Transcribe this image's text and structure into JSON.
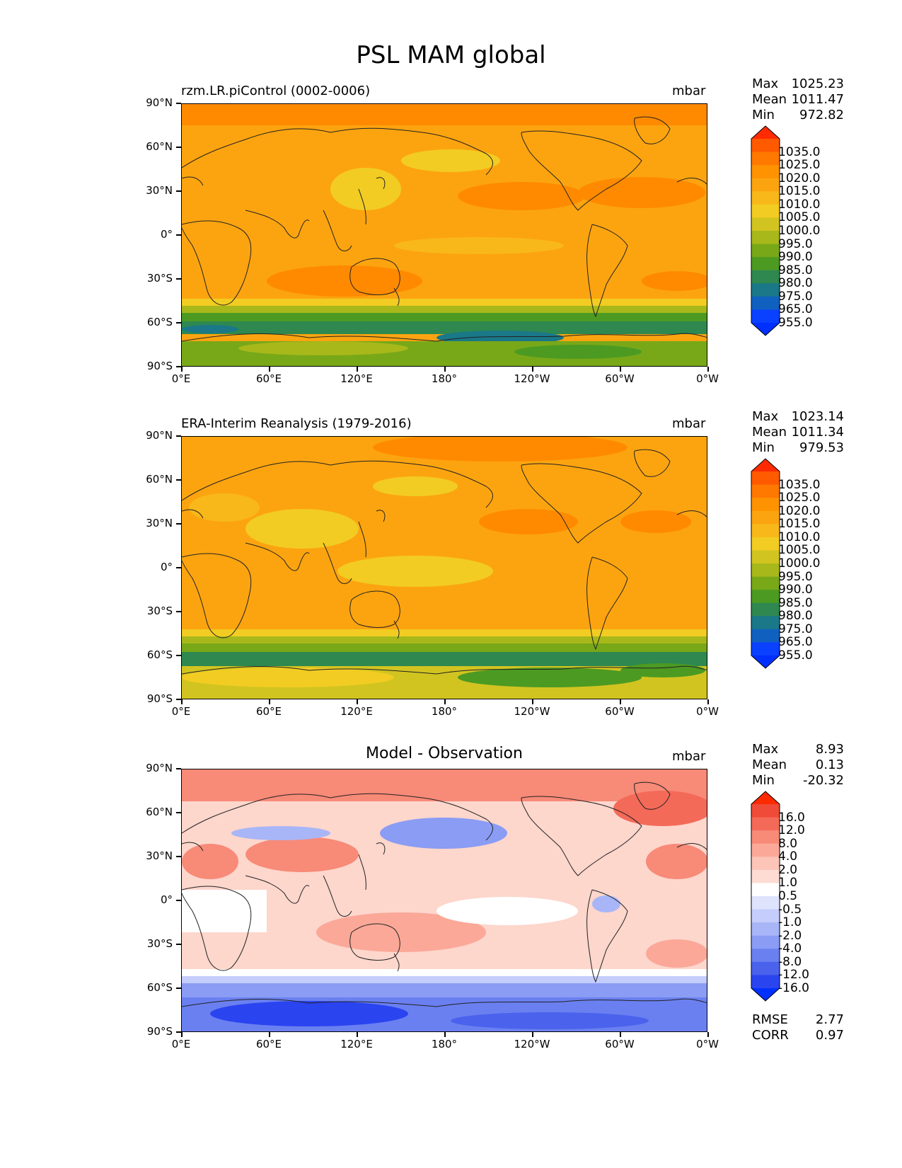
{
  "figure_title": "PSL MAM global",
  "panels": [
    {
      "title": "rzm.LR.piControl (0002-0006)",
      "units": "mbar",
      "stats": [
        {
          "label": "Max",
          "value": "1025.23"
        },
        {
          "label": "Mean",
          "value": "1011.47"
        },
        {
          "label": "Min",
          "value": "972.82"
        }
      ],
      "colorbar": {
        "labels": [
          "1035.0",
          "1025.0",
          "1020.0",
          "1015.0",
          "1010.0",
          "1005.0",
          "1000.0",
          "995.0",
          "990.0",
          "985.0",
          "980.0",
          "975.0",
          "965.0",
          "955.0"
        ],
        "colors": [
          "#ff2a00",
          "#ff5a00",
          "#ff7800",
          "#ff9200",
          "#fca410",
          "#f9b81a",
          "#f2cc22",
          "#d2c420",
          "#a8b81a",
          "#78a818",
          "#4c9a22",
          "#2e8850",
          "#1a7888",
          "#1060c0",
          "#0a40ff",
          "#0030ff"
        ]
      }
    },
    {
      "title": "ERA-Interim Reanalysis (1979-2016)",
      "units": "mbar",
      "stats": [
        {
          "label": "Max",
          "value": "1023.14"
        },
        {
          "label": "Mean",
          "value": "1011.34"
        },
        {
          "label": "Min",
          "value": "979.53"
        }
      ],
      "colorbar": {
        "labels": [
          "1035.0",
          "1025.0",
          "1020.0",
          "1015.0",
          "1010.0",
          "1005.0",
          "1000.0",
          "995.0",
          "990.0",
          "985.0",
          "980.0",
          "975.0",
          "965.0",
          "955.0"
        ],
        "colors": [
          "#ff2a00",
          "#ff5a00",
          "#ff7800",
          "#ff9200",
          "#fca410",
          "#f9b81a",
          "#f2cc22",
          "#d2c420",
          "#a8b81a",
          "#78a818",
          "#4c9a22",
          "#2e8850",
          "#1a7888",
          "#1060c0",
          "#0a40ff",
          "#0030ff"
        ]
      }
    },
    {
      "title": "Model - Observation",
      "units": "mbar",
      "stats": [
        {
          "label": "Max",
          "value": "8.93"
        },
        {
          "label": "Mean",
          "value": "0.13"
        },
        {
          "label": "Min",
          "value": "-20.32"
        }
      ],
      "colorbar": {
        "labels": [
          "16.0",
          "12.0",
          "8.0",
          "4.0",
          "2.0",
          "1.0",
          "0.5",
          "-0.5",
          "-1.0",
          "-2.0",
          "-4.0",
          "-8.0",
          "-12.0",
          "-16.0"
        ],
        "colors": [
          "#ff2a00",
          "#f04a38",
          "#f46a58",
          "#f88a78",
          "#fba898",
          "#fdc4b8",
          "#fedcd4",
          "#ffffff",
          "#dfe4fd",
          "#c4cdfb",
          "#a8b6f8",
          "#8a9cf4",
          "#6a80f0",
          "#4a62ec",
          "#2a44f0",
          "#0030ff"
        ]
      },
      "extra_stats": [
        {
          "label": "RMSE",
          "value": "2.77"
        },
        {
          "label": "CORR",
          "value": "0.97"
        }
      ]
    }
  ],
  "axes": {
    "lat_ticks": [
      "90°N",
      "60°N",
      "30°N",
      "0°",
      "30°S",
      "60°S",
      "90°S"
    ],
    "lon_ticks": [
      "0°E",
      "60°E",
      "120°E",
      "180°",
      "120°W",
      "60°W",
      "0°W"
    ]
  },
  "colors": {
    "map_model_base": "#fca410",
    "map_diff_base": "#fdd6cc"
  }
}
